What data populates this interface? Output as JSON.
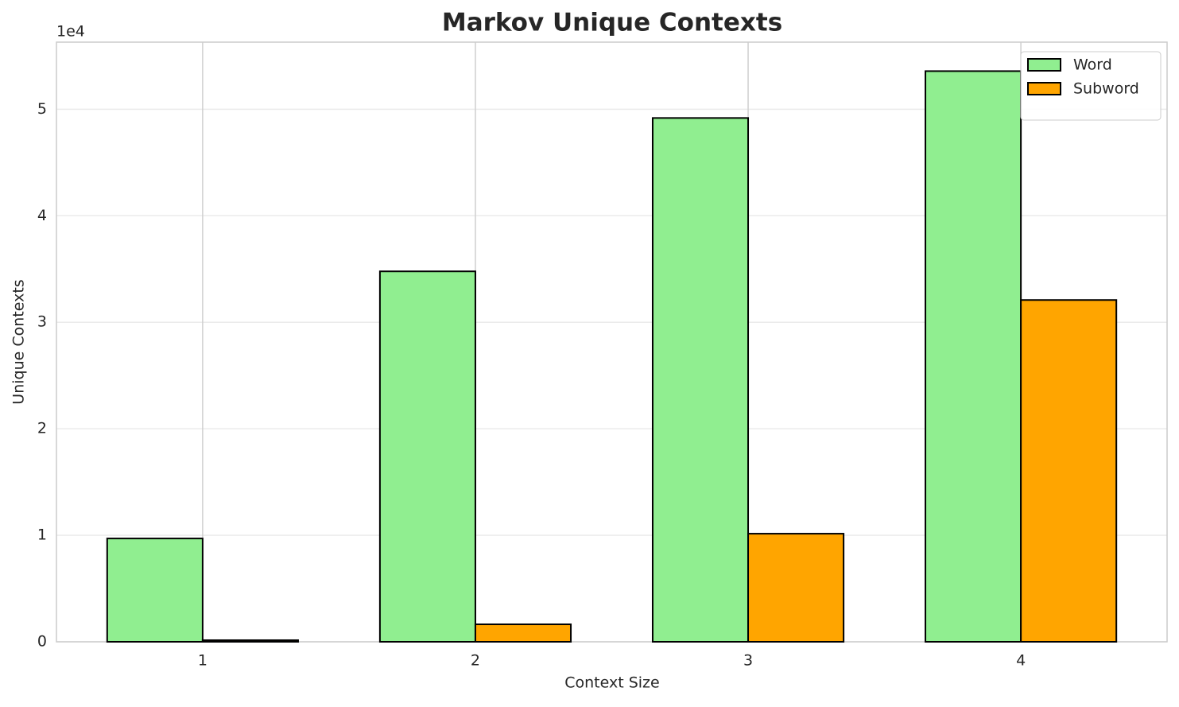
{
  "chart_data": {
    "type": "bar",
    "title": "Markov Unique Contexts",
    "x_label": "Context Size",
    "y_label": "Unique Contexts",
    "y_offset_label": "1e4",
    "x": [
      1,
      2,
      3,
      4
    ],
    "xlim": [
      0.464,
      4.536
    ],
    "xticks": [
      1,
      2,
      3,
      4
    ],
    "ylim": [
      0,
      56300
    ],
    "yticks": [
      0,
      {
        "value": 10000,
        "label": "1"
      },
      {
        "value": 20000,
        "label": "2"
      },
      {
        "value": 30000,
        "label": "3"
      },
      {
        "value": 40000,
        "label": "4"
      },
      {
        "value": 50000,
        "label": "5"
      }
    ],
    "grid": true,
    "legend": "upper right",
    "series": [
      {
        "name": "Word",
        "color": "#90ee90",
        "values": [
          9700,
          34780,
          49180,
          53580
        ]
      },
      {
        "name": "Subword",
        "color": "#ffa500",
        "values": [
          150,
          1640,
          10150,
          32090
        ]
      }
    ]
  }
}
